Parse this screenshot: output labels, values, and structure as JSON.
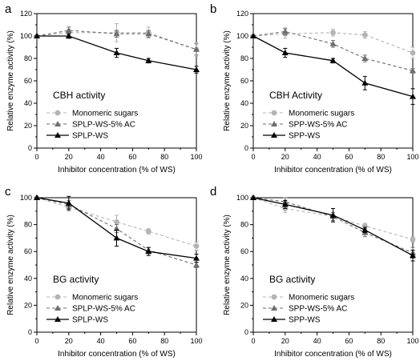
{
  "chart_data": [
    {
      "panel": "a",
      "type": "line",
      "annotation": "CBH activity",
      "xlabel": "Inhibitor concentration (% of WS)",
      "ylabel": "Relative enzyme activity (%)",
      "xlim": [
        0,
        100
      ],
      "ylim": [
        0,
        120
      ],
      "xticks": [
        0,
        20,
        40,
        60,
        80,
        100
      ],
      "yticks": [
        0,
        20,
        40,
        60,
        80,
        100,
        120
      ],
      "legend_position": "lower-left",
      "series": [
        {
          "name": "Monomeric sugars",
          "color": "#b4b4b4",
          "marker": "circle",
          "dash": "dashed",
          "x": [
            0,
            20,
            50,
            70,
            100
          ],
          "y": [
            100,
            103,
            103,
            103,
            88
          ],
          "err": [
            0,
            3,
            8,
            5,
            6
          ]
        },
        {
          "name": "SPLP-WS-5% AC",
          "color": "#6e6e6e",
          "marker": "triangle",
          "dash": "dashed",
          "x": [
            0,
            20,
            50,
            70,
            100
          ],
          "y": [
            100,
            105,
            102,
            102,
            88
          ],
          "err": [
            0,
            3,
            3,
            3,
            5
          ]
        },
        {
          "name": "SPLP-WS",
          "color": "#000000",
          "marker": "triangle",
          "dash": "solid",
          "x": [
            0,
            20,
            50,
            70,
            100
          ],
          "y": [
            100,
            100,
            85,
            78,
            70
          ],
          "err": [
            0,
            2,
            4,
            2,
            3
          ]
        }
      ]
    },
    {
      "panel": "b",
      "type": "line",
      "annotation": "CBH Activity",
      "xlabel": "Inhibitor concentration (% of WS)",
      "ylabel": "Relative enzyme activity (%)",
      "xlim": [
        0,
        100
      ],
      "ylim": [
        0,
        120
      ],
      "xticks": [
        0,
        20,
        40,
        60,
        80,
        100
      ],
      "yticks": [
        0,
        20,
        40,
        60,
        80,
        100,
        120
      ],
      "legend_position": "lower-left",
      "series": [
        {
          "name": "Monomeric sugars",
          "color": "#b4b4b4",
          "marker": "circle",
          "dash": "dashed",
          "x": [
            0,
            20,
            50,
            70,
            100
          ],
          "y": [
            100,
            102,
            103,
            101,
            85
          ],
          "err": [
            0,
            4,
            3,
            3,
            5
          ]
        },
        {
          "name": "SPP-WS-5% AC",
          "color": "#6e6e6e",
          "marker": "triangle",
          "dash": "dashed",
          "x": [
            0,
            20,
            50,
            70,
            100
          ],
          "y": [
            100,
            104,
            93,
            80,
            69
          ],
          "err": [
            0,
            3,
            3,
            3,
            2
          ]
        },
        {
          "name": "SPP-WS",
          "color": "#000000",
          "marker": "triangle",
          "dash": "solid",
          "x": [
            0,
            20,
            50,
            70,
            100
          ],
          "y": [
            100,
            85,
            78,
            58,
            46
          ],
          "err": [
            0,
            4,
            2,
            6,
            7
          ]
        }
      ]
    },
    {
      "panel": "c",
      "type": "line",
      "annotation": "BG activity",
      "xlabel": "Inhibitor concentration (% of WS)",
      "ylabel": "Relative enzyme activity (%)",
      "xlim": [
        0,
        100
      ],
      "ylim": [
        0,
        100
      ],
      "xticks": [
        0,
        20,
        40,
        60,
        80,
        100
      ],
      "yticks": [
        0,
        20,
        40,
        60,
        80,
        100
      ],
      "legend_position": "lower-left",
      "series": [
        {
          "name": "Monomeric sugars",
          "color": "#b4b4b4",
          "marker": "circle",
          "dash": "dashed",
          "x": [
            0,
            20,
            50,
            70,
            100
          ],
          "y": [
            100,
            93,
            82,
            75,
            64
          ],
          "err": [
            0,
            3,
            5,
            2,
            3
          ]
        },
        {
          "name": "SPLP-WS-5% AC",
          "color": "#6e6e6e",
          "marker": "triangle",
          "dash": "dashed",
          "x": [
            0,
            20,
            50,
            70,
            100
          ],
          "y": [
            100,
            95,
            77,
            61,
            50
          ],
          "err": [
            0,
            3,
            3,
            2,
            2
          ]
        },
        {
          "name": "SPLP-WS",
          "color": "#000000",
          "marker": "triangle",
          "dash": "solid",
          "x": [
            0,
            20,
            50,
            70,
            100
          ],
          "y": [
            100,
            96,
            70,
            60,
            55
          ],
          "err": [
            0,
            5,
            6,
            3,
            3
          ]
        }
      ]
    },
    {
      "panel": "d",
      "type": "line",
      "annotation": "BG activity",
      "xlabel": "Inhibitor concentration (% of WS)",
      "ylabel": "Relative enzyme activity (%)",
      "xlim": [
        0,
        100
      ],
      "ylim": [
        0,
        100
      ],
      "xticks": [
        0,
        20,
        40,
        60,
        80,
        100
      ],
      "yticks": [
        0,
        20,
        40,
        60,
        80,
        100
      ],
      "legend_position": "lower-left",
      "series": [
        {
          "name": "Monomeric sugars",
          "color": "#b4b4b4",
          "marker": "circle",
          "dash": "dashed",
          "x": [
            0,
            20,
            50,
            70,
            100
          ],
          "y": [
            100,
            92,
            86,
            79,
            69
          ],
          "err": [
            0,
            3,
            3,
            2,
            2
          ]
        },
        {
          "name": "SPP-WS-5% AC",
          "color": "#6e6e6e",
          "marker": "triangle",
          "dash": "dashed",
          "x": [
            0,
            20,
            50,
            70,
            100
          ],
          "y": [
            100,
            97,
            86,
            74,
            59
          ],
          "err": [
            0,
            3,
            3,
            3,
            4
          ]
        },
        {
          "name": "SPP-WS",
          "color": "#000000",
          "marker": "triangle",
          "dash": "solid",
          "x": [
            0,
            20,
            50,
            70,
            100
          ],
          "y": [
            100,
            95,
            87,
            76,
            57
          ],
          "err": [
            0,
            3,
            5,
            2,
            4
          ]
        }
      ]
    }
  ]
}
